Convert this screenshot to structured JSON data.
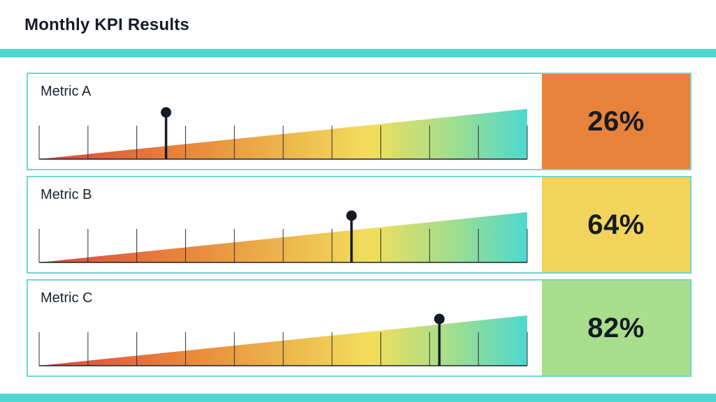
{
  "header": {
    "title": "Monthly KPI Results"
  },
  "colors": {
    "accent_band": "#4dd8cf",
    "panel_border": "#6fd8cf",
    "low": "#e8823a",
    "mid": "#f2d45c",
    "high": "#a8de8c"
  },
  "metrics": [
    {
      "label": "Metric A",
      "value_text": "26%",
      "value": 26,
      "box_color": "#e8823a"
    },
    {
      "label": "Metric B",
      "value_text": "64%",
      "value": 64,
      "box_color": "#f2d45c"
    },
    {
      "label": "Metric C",
      "value_text": "82%",
      "value": 82,
      "box_color": "#a8de8c"
    }
  ],
  "chart_data": [
    {
      "type": "bar",
      "title": "Monthly KPI Results",
      "categories": [
        "Metric A",
        "Metric B",
        "Metric C"
      ],
      "values": [
        26,
        64,
        82
      ],
      "unit": "%",
      "xlim": [
        0,
        100
      ],
      "ticks": [
        0,
        10,
        20,
        30,
        40,
        50,
        60,
        70,
        80,
        90,
        100
      ],
      "gradient": [
        "#d9453f",
        "#e8873a",
        "#f2de5c",
        "#9fde8f",
        "#4dd8cf"
      ],
      "grid": true
    }
  ]
}
